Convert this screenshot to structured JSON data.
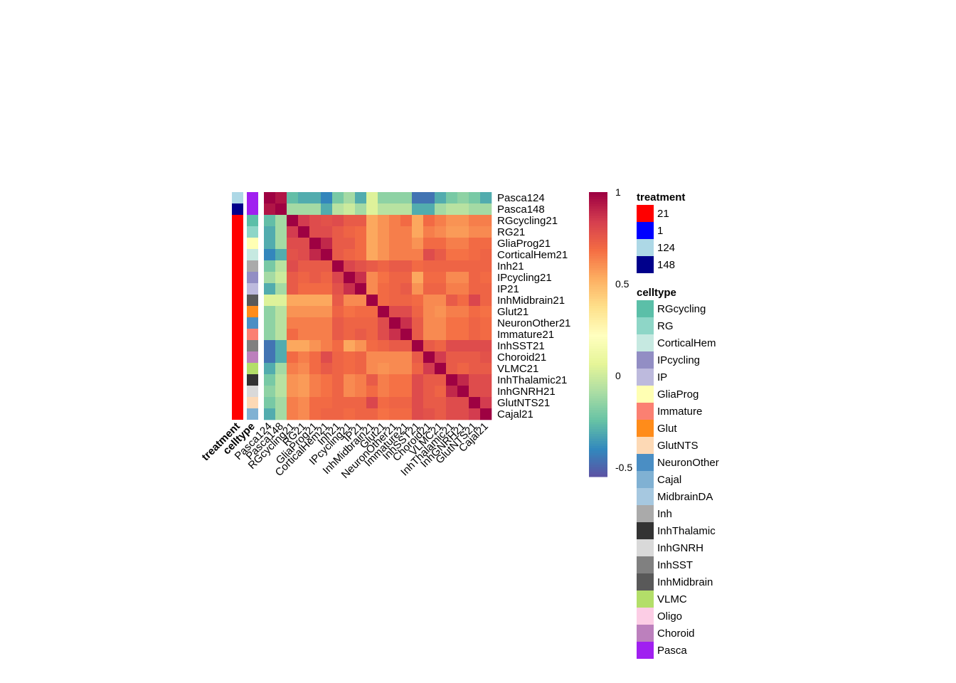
{
  "chart_data": {
    "type": "heatmap",
    "rows": [
      "Pasca124",
      "Pasca148",
      "RGcycling21",
      "RG21",
      "GliaProg21",
      "CorticalHem21",
      "Inh21",
      "IPcycling21",
      "IP21",
      "InhMidbrain21",
      "Glut21",
      "NeuronOther21",
      "Immature21",
      "InhSST21",
      "Choroid21",
      "VLMC21",
      "InhThalamic21",
      "InhGNRH21",
      "GlutNTS21",
      "Cajal21"
    ],
    "columns": [
      "Pasca124",
      "Pasca148",
      "RGcycling21",
      "RG21",
      "GliaProg21",
      "CorticalHem21",
      "Inh21",
      "IPcycling21",
      "IP21",
      "InhMidbrain21",
      "Glut21",
      "NeuronOther21",
      "Immature21",
      "InhSST21",
      "Choroid21",
      "VLMC21",
      "InhThalamic21",
      "InhGNRH21",
      "GlutNTS21",
      "Cajal21"
    ],
    "values": [
      [
        1.0,
        0.95,
        -0.25,
        -0.3,
        -0.3,
        -0.4,
        -0.2,
        -0.1,
        -0.3,
        0.05,
        -0.15,
        -0.15,
        -0.15,
        -0.45,
        -0.45,
        -0.3,
        -0.2,
        -0.15,
        -0.2,
        -0.3
      ],
      [
        0.95,
        1.0,
        -0.1,
        -0.1,
        -0.1,
        -0.3,
        -0.05,
        0.0,
        -0.1,
        0.05,
        -0.05,
        -0.05,
        -0.05,
        -0.3,
        -0.3,
        -0.1,
        -0.05,
        -0.05,
        -0.1,
        -0.1
      ],
      [
        -0.25,
        -0.1,
        1.0,
        0.85,
        0.8,
        0.78,
        0.8,
        0.75,
        0.75,
        0.55,
        0.6,
        0.65,
        0.7,
        0.55,
        0.7,
        0.65,
        0.6,
        0.6,
        0.65,
        0.65
      ],
      [
        -0.3,
        -0.1,
        0.85,
        1.0,
        0.8,
        0.8,
        0.75,
        0.72,
        0.7,
        0.55,
        0.6,
        0.65,
        0.65,
        0.55,
        0.65,
        0.62,
        0.58,
        0.58,
        0.62,
        0.62
      ],
      [
        -0.3,
        -0.1,
        0.8,
        0.8,
        1.0,
        0.9,
        0.75,
        0.75,
        0.7,
        0.55,
        0.6,
        0.65,
        0.65,
        0.6,
        0.7,
        0.7,
        0.65,
        0.65,
        0.7,
        0.7
      ],
      [
        -0.4,
        -0.3,
        0.78,
        0.8,
        0.9,
        1.0,
        0.75,
        0.72,
        0.7,
        0.55,
        0.6,
        0.65,
        0.65,
        0.65,
        0.8,
        0.75,
        0.68,
        0.68,
        0.7,
        0.72
      ],
      [
        -0.2,
        -0.05,
        0.8,
        0.75,
        0.75,
        0.75,
        1.0,
        0.82,
        0.78,
        0.75,
        0.72,
        0.75,
        0.75,
        0.7,
        0.72,
        0.72,
        0.72,
        0.72,
        0.72,
        0.72
      ],
      [
        -0.1,
        0.0,
        0.75,
        0.72,
        0.75,
        0.72,
        0.82,
        1.0,
        0.88,
        0.62,
        0.68,
        0.72,
        0.72,
        0.55,
        0.7,
        0.7,
        0.62,
        0.62,
        0.72,
        0.7
      ],
      [
        -0.3,
        -0.1,
        0.75,
        0.7,
        0.7,
        0.7,
        0.78,
        0.88,
        1.0,
        0.62,
        0.7,
        0.72,
        0.75,
        0.6,
        0.72,
        0.72,
        0.65,
        0.65,
        0.72,
        0.72
      ],
      [
        0.05,
        0.05,
        0.55,
        0.55,
        0.55,
        0.55,
        0.75,
        0.62,
        0.62,
        1.0,
        0.7,
        0.72,
        0.72,
        0.7,
        0.62,
        0.62,
        0.75,
        0.7,
        0.82,
        0.72
      ],
      [
        -0.15,
        -0.05,
        0.6,
        0.6,
        0.6,
        0.6,
        0.72,
        0.68,
        0.7,
        0.7,
        1.0,
        0.8,
        0.8,
        0.72,
        0.62,
        0.6,
        0.65,
        0.65,
        0.7,
        0.68
      ],
      [
        -0.15,
        -0.05,
        0.65,
        0.65,
        0.65,
        0.65,
        0.75,
        0.72,
        0.72,
        0.72,
        0.8,
        1.0,
        0.88,
        0.75,
        0.62,
        0.62,
        0.68,
        0.68,
        0.72,
        0.7
      ],
      [
        -0.15,
        -0.05,
        0.7,
        0.65,
        0.65,
        0.65,
        0.75,
        0.72,
        0.75,
        0.72,
        0.8,
        0.88,
        1.0,
        0.75,
        0.62,
        0.62,
        0.68,
        0.68,
        0.72,
        0.7
      ],
      [
        -0.45,
        -0.3,
        0.55,
        0.55,
        0.6,
        0.65,
        0.7,
        0.55,
        0.6,
        0.7,
        0.72,
        0.75,
        0.75,
        1.0,
        0.75,
        0.72,
        0.8,
        0.8,
        0.8,
        0.8
      ],
      [
        -0.45,
        -0.3,
        0.7,
        0.65,
        0.7,
        0.8,
        0.72,
        0.7,
        0.72,
        0.62,
        0.62,
        0.62,
        0.62,
        0.75,
        1.0,
        0.85,
        0.75,
        0.75,
        0.75,
        0.78
      ],
      [
        -0.3,
        -0.1,
        0.65,
        0.62,
        0.7,
        0.75,
        0.72,
        0.7,
        0.72,
        0.62,
        0.6,
        0.62,
        0.62,
        0.72,
        0.85,
        1.0,
        0.75,
        0.72,
        0.75,
        0.75
      ],
      [
        -0.2,
        -0.05,
        0.6,
        0.58,
        0.65,
        0.68,
        0.72,
        0.62,
        0.65,
        0.75,
        0.65,
        0.68,
        0.68,
        0.8,
        0.75,
        0.75,
        1.0,
        0.9,
        0.8,
        0.8
      ],
      [
        -0.15,
        -0.05,
        0.6,
        0.58,
        0.65,
        0.68,
        0.72,
        0.62,
        0.65,
        0.7,
        0.65,
        0.68,
        0.68,
        0.8,
        0.75,
        0.72,
        0.9,
        1.0,
        0.8,
        0.8
      ],
      [
        -0.2,
        -0.1,
        0.65,
        0.62,
        0.7,
        0.7,
        0.72,
        0.72,
        0.72,
        0.82,
        0.7,
        0.72,
        0.72,
        0.8,
        0.75,
        0.75,
        0.8,
        0.8,
        1.0,
        0.85
      ],
      [
        -0.3,
        -0.1,
        0.65,
        0.62,
        0.7,
        0.72,
        0.72,
        0.7,
        0.72,
        0.72,
        0.68,
        0.7,
        0.7,
        0.8,
        0.78,
        0.75,
        0.8,
        0.8,
        0.85,
        1.0
      ]
    ],
    "colorbar": {
      "ticks": [
        "1",
        "0.5",
        "0",
        "-0.5"
      ],
      "tick_values": [
        1,
        0.5,
        0,
        -0.5
      ],
      "range": [
        -0.55,
        1.0
      ]
    },
    "colormap": [
      "#5E4FA2",
      "#3288BD",
      "#66C2A5",
      "#ABDDA4",
      "#E6F598",
      "#FFFFBF",
      "#FEE08B",
      "#FDAE61",
      "#F46D43",
      "#D53E4F",
      "#9E0142"
    ],
    "annotations": [
      {
        "name": "treatment",
        "values": [
          "124",
          "148",
          "21",
          "21",
          "21",
          "21",
          "21",
          "21",
          "21",
          "21",
          "21",
          "21",
          "21",
          "21",
          "21",
          "21",
          "21",
          "21",
          "21",
          "21"
        ]
      },
      {
        "name": "celltype",
        "values": [
          "Pasca",
          "Pasca",
          "RGcycling",
          "RG",
          "GliaProg",
          "CorticalHem",
          "Inh",
          "IPcycling",
          "IP",
          "InhMidbrain",
          "Glut",
          "NeuronOther",
          "Immature",
          "InhSST",
          "Choroid",
          "VLMC",
          "InhThalamic",
          "InhGNRH",
          "GlutNTS",
          "Cajal"
        ]
      }
    ],
    "legend": {
      "treatment": {
        "title": "treatment",
        "items": [
          {
            "label": "21",
            "color": "#FF0000"
          },
          {
            "label": "1",
            "color": "#0000FF"
          },
          {
            "label": "124",
            "color": "#ADD8E6"
          },
          {
            "label": "148",
            "color": "#00008B"
          }
        ]
      },
      "celltype": {
        "title": "celltype",
        "items": [
          {
            "label": "RGcycling",
            "color": "#5BBFA8"
          },
          {
            "label": "RG",
            "color": "#8ED6C7"
          },
          {
            "label": "CorticalHem",
            "color": "#C6E9E1"
          },
          {
            "label": "IPcycling",
            "color": "#928EC4"
          },
          {
            "label": "IP",
            "color": "#BDBADD"
          },
          {
            "label": "GliaProg",
            "color": "#FFFFB3"
          },
          {
            "label": "Immature",
            "color": "#FB8072"
          },
          {
            "label": "Glut",
            "color": "#FF8C1A"
          },
          {
            "label": "GlutNTS",
            "color": "#FDD9B5"
          },
          {
            "label": "NeuronOther",
            "color": "#4A8EC4"
          },
          {
            "label": "Cajal",
            "color": "#80B1D3"
          },
          {
            "label": "MidbrainDA",
            "color": "#A6C8E0"
          },
          {
            "label": "Inh",
            "color": "#AAAAAA"
          },
          {
            "label": "InhThalamic",
            "color": "#333333"
          },
          {
            "label": "InhGNRH",
            "color": "#D9D9D9"
          },
          {
            "label": "InhSST",
            "color": "#808080"
          },
          {
            "label": "InhMidbrain",
            "color": "#595959"
          },
          {
            "label": "VLMC",
            "color": "#B3DE69"
          },
          {
            "label": "Oligo",
            "color": "#FCCDE5"
          },
          {
            "label": "Choroid",
            "color": "#BC80BD"
          },
          {
            "label": "Pasca",
            "color": "#A020F0"
          }
        ]
      }
    }
  }
}
